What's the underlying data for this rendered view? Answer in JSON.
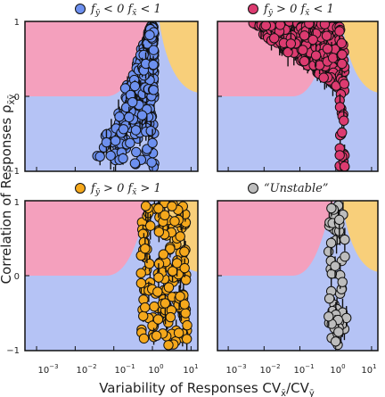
{
  "figure": {
    "xlabel": "Variability of Responses  CV",
    "xlabel_sub1": "x̄",
    "xlabel_mid": "/CV",
    "xlabel_sub2": "ȳ",
    "ylabel": "Correlation of Responses  ρ",
    "ylabel_sub": "x̄ȳ",
    "x_ticks": [
      "10",
      "10",
      "10",
      "10",
      "10"
    ],
    "x_tick_exponents": [
      "−3",
      "−2",
      "−1",
      "0",
      "1"
    ],
    "y_ticks": [
      "1",
      "0",
      "−1"
    ],
    "region_colors": {
      "background": "#b5c3f5",
      "upper_left": "#f4a0bd",
      "upper_right": "#f8cf7a"
    }
  },
  "chart_data": [
    {
      "type": "scatter",
      "legend": {
        "symbol": "f",
        "sub1": "ȳ",
        "rel1": " < 0",
        "symbol2": "f",
        "sub2": "x̄",
        "rel2": " < 1"
      },
      "color": "#6d90ef",
      "xscale": "log",
      "xlim": [
        0.0005,
        15
      ],
      "ylim": [
        -1,
        1
      ],
      "series": [
        {
          "x_log_range": [
            -1.6,
            0.1
          ],
          "y_range": [
            -0.95,
            0.95
          ],
          "shape": "v-spike",
          "n": 260
        }
      ]
    },
    {
      "type": "scatter",
      "legend": {
        "symbol": "f",
        "sub1": "ȳ",
        "rel1": " > 0",
        "symbol2": "f",
        "sub2": "x̄",
        "rel2": " < 1"
      },
      "color": "#dc3b70",
      "xscale": "log",
      "xlim": [
        0.0005,
        15
      ],
      "ylim": [
        -1,
        1
      ],
      "series": [
        {
          "x_log_range": [
            -2.4,
            0.1
          ],
          "y_range": [
            0.2,
            1.0
          ],
          "shape": "top-band",
          "n": 320
        },
        {
          "x_log_range": [
            0.1,
            0.25
          ],
          "y_range": [
            -0.95,
            0.95
          ],
          "shape": "vertical",
          "n": 40
        }
      ]
    },
    {
      "type": "scatter",
      "legend": {
        "symbol": "f",
        "sub1": "ȳ",
        "rel1": " > 0",
        "symbol2": "f",
        "sub2": "x̄",
        "rel2": " > 1"
      },
      "color": "#f5a81c",
      "xscale": "log",
      "xlim": [
        0.0005,
        15
      ],
      "ylim": [
        -1,
        1
      ],
      "series": [
        {
          "x_log_range": [
            -0.3,
            0.9
          ],
          "y_range": [
            -0.95,
            0.98
          ],
          "shape": "column",
          "n": 160
        }
      ]
    },
    {
      "type": "scatter",
      "legend": {
        "text": "“Unstable”"
      },
      "color": "#bdbdbd",
      "xscale": "log",
      "xlim": [
        0.0005,
        15
      ],
      "ylim": [
        -1,
        1
      ],
      "series": [
        {
          "x_log_range": [
            -0.2,
            0.3
          ],
          "y_range": [
            -0.95,
            0.98
          ],
          "shape": "column",
          "n": 55
        }
      ]
    }
  ]
}
